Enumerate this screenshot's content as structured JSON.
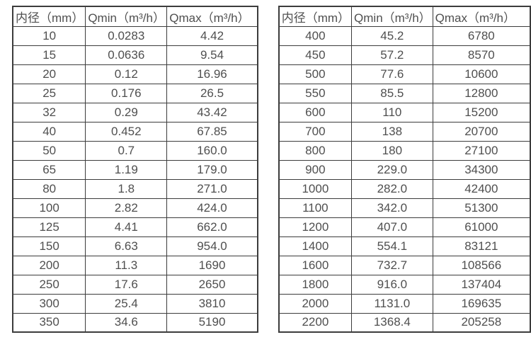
{
  "table_left": {
    "headers": [
      "内径（mm）",
      "Qmin（m³/h）",
      "Qmax（m³/h）"
    ],
    "rows": [
      [
        "10",
        "0.0283",
        "4.42"
      ],
      [
        "15",
        "0.0636",
        "9.54"
      ],
      [
        "20",
        "0.12",
        "16.96"
      ],
      [
        "25",
        "0.176",
        "26.5"
      ],
      [
        "32",
        "0.29",
        "43.42"
      ],
      [
        "40",
        "0.452",
        "67.85"
      ],
      [
        "50",
        "0.7",
        "160.0"
      ],
      [
        "65",
        "1.19",
        "179.0"
      ],
      [
        "80",
        "1.8",
        "271.0"
      ],
      [
        "100",
        "2.82",
        "424.0"
      ],
      [
        "125",
        "4.41",
        "662.0"
      ],
      [
        "150",
        "6.63",
        "954.0"
      ],
      [
        "200",
        "11.3",
        "1690"
      ],
      [
        "250",
        "17.6",
        "2650"
      ],
      [
        "300",
        "25.4",
        "3810"
      ],
      [
        "350",
        "34.6",
        "5190"
      ]
    ]
  },
  "table_right": {
    "headers": [
      "内径（mm）",
      "Qmin（m³/h）",
      "Qmax（m³/h）"
    ],
    "rows": [
      [
        "400",
        "45.2",
        "6780"
      ],
      [
        "450",
        "57.2",
        "8570"
      ],
      [
        "500",
        "77.6",
        "10600"
      ],
      [
        "550",
        "85.5",
        "12800"
      ],
      [
        "600",
        "110",
        "15200"
      ],
      [
        "700",
        "138",
        "20700"
      ],
      [
        "800",
        "180",
        "27100"
      ],
      [
        "900",
        "229.0",
        "34300"
      ],
      [
        "1000",
        "282.0",
        "42400"
      ],
      [
        "1100",
        "342.0",
        "51300"
      ],
      [
        "1200",
        "407.0",
        "61000"
      ],
      [
        "1400",
        "554.1",
        "83121"
      ],
      [
        "1600",
        "732.7",
        "108566"
      ],
      [
        "1800",
        "916.0",
        "137404"
      ],
      [
        "2000",
        "1131.0",
        "169635"
      ],
      [
        "2200",
        "1368.4",
        "205258"
      ]
    ]
  },
  "colors": {
    "border": "#3c3c3c",
    "text": "#4f4f4f",
    "background": "#ffffff"
  }
}
